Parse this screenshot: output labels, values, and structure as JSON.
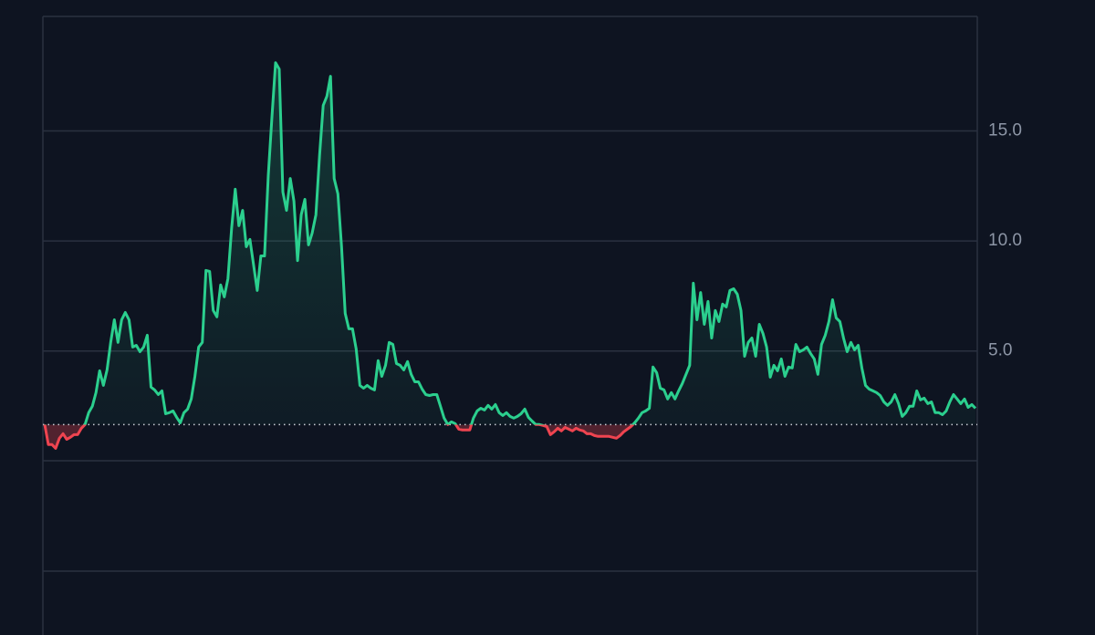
{
  "chart_data": {
    "type": "line",
    "values": [
      1.66,
      0.75,
      0.75,
      0.58,
      1.04,
      1.24,
      0.99,
      1.08,
      1.2,
      1.2,
      1.49,
      1.66,
      2.2,
      2.49,
      3.11,
      4.1,
      3.44,
      4.14,
      5.39,
      6.42,
      5.39,
      6.42,
      6.75,
      6.42,
      5.18,
      5.26,
      4.97,
      5.18,
      5.72,
      3.36,
      3.23,
      3.02,
      3.19,
      2.15,
      2.2,
      2.28,
      1.99,
      1.74,
      2.2,
      2.36,
      2.82,
      3.85,
      5.18,
      5.39,
      8.66,
      8.62,
      6.84,
      6.55,
      8.0,
      7.46,
      8.29,
      10.56,
      12.35,
      10.69,
      11.39,
      9.74,
      10.07,
      8.91,
      7.75,
      9.32,
      9.32,
      12.97,
      15.62,
      18.1,
      17.81,
      12.22,
      11.39,
      12.84,
      11.81,
      9.11,
      11.19,
      11.89,
      9.82,
      10.36,
      11.19,
      13.88,
      16.16,
      16.57,
      17.48,
      12.84,
      12.14,
      9.74,
      6.71,
      6.01,
      6.01,
      5.1,
      3.44,
      3.31,
      3.44,
      3.31,
      3.23,
      4.56,
      3.85,
      4.35,
      5.39,
      5.3,
      4.43,
      4.35,
      4.14,
      4.52,
      3.94,
      3.6,
      3.6,
      3.27,
      3.02,
      2.98,
      3.02,
      3.02,
      2.49,
      1.95,
      1.66,
      1.78,
      1.7,
      1.45,
      1.41,
      1.41,
      1.41,
      1.95,
      2.28,
      2.4,
      2.32,
      2.53,
      2.36,
      2.57,
      2.2,
      2.07,
      2.2,
      2.03,
      1.95,
      2.03,
      2.15,
      2.36,
      1.99,
      1.82,
      1.66,
      1.66,
      1.62,
      1.57,
      1.2,
      1.33,
      1.49,
      1.37,
      1.53,
      1.45,
      1.37,
      1.49,
      1.41,
      1.37,
      1.24,
      1.24,
      1.16,
      1.12,
      1.12,
      1.12,
      1.12,
      1.08,
      1.04,
      1.16,
      1.33,
      1.45,
      1.57,
      1.74,
      1.95,
      2.2,
      2.28,
      2.4,
      4.27,
      4.02,
      3.31,
      3.23,
      2.82,
      3.11,
      2.82,
      3.19,
      3.52,
      3.94,
      4.35,
      8.08,
      6.42,
      7.66,
      6.21,
      7.25,
      5.59,
      6.84,
      6.34,
      7.13,
      7.0,
      7.75,
      7.83,
      7.58,
      6.84,
      4.76,
      5.39,
      5.59,
      4.76,
      6.21,
      5.8,
      5.18,
      3.81,
      4.35,
      4.1,
      4.64,
      3.85,
      4.27,
      4.23,
      5.3,
      4.97,
      5.05,
      5.18,
      4.89,
      4.64,
      3.94,
      5.3,
      5.72,
      6.34,
      7.33,
      6.5,
      6.34,
      5.59,
      4.97,
      5.39,
      5.05,
      5.26,
      4.23,
      3.44,
      3.27,
      3.19,
      3.11,
      2.98,
      2.69,
      2.53,
      2.69,
      3.02,
      2.61,
      2.03,
      2.2,
      2.49,
      2.49,
      3.19,
      2.78,
      2.86,
      2.61,
      2.69,
      2.2,
      2.2,
      2.11,
      2.28,
      2.69,
      3.02,
      2.82,
      2.61,
      2.82,
      2.44,
      2.57,
      2.4
    ],
    "baseline": 1.66,
    "up_color": "#2bcf8e",
    "down_color": "#ef4450",
    "ylim": [
      -5,
      20.2
    ],
    "yticks": [
      {
        "value": 5,
        "label": "5.0"
      },
      {
        "value": 10,
        "label": "10.0"
      },
      {
        "value": 15,
        "label": "15.0"
      }
    ],
    "grid": true
  }
}
